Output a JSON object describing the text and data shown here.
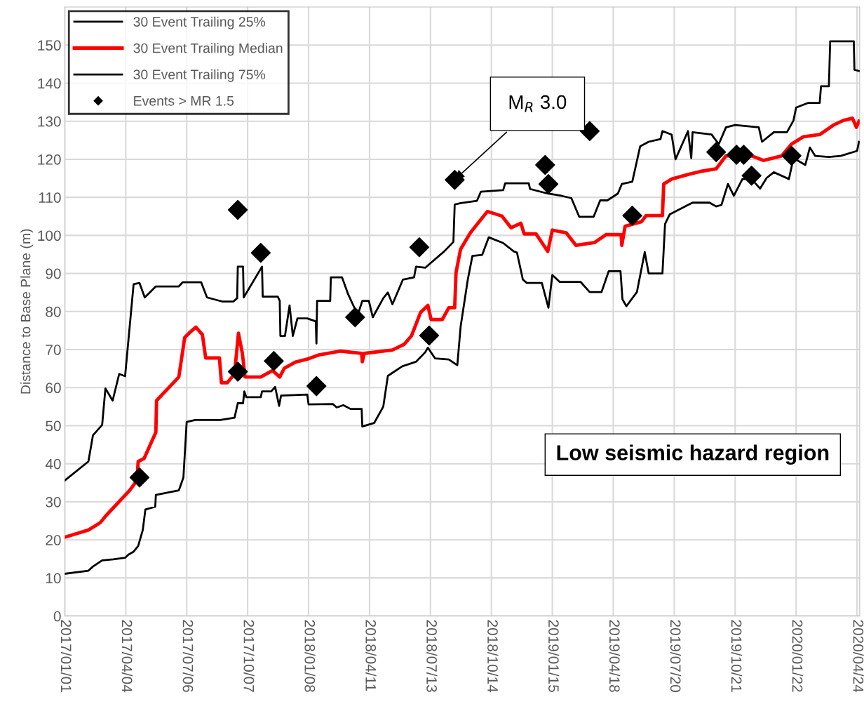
{
  "chart_data": {
    "type": "line",
    "ylabel": "Distance to Base Plane (m)",
    "xlim": [
      "2017-01-01",
      "2020-04-28"
    ],
    "ylim": [
      0,
      160
    ],
    "xticks": [
      {
        "value": "2017-01-01",
        "label": "2017/01/01"
      },
      {
        "value": "2017-04-04",
        "label": "2017/04/04"
      },
      {
        "value": "2017-07-06",
        "label": "2017/07/06"
      },
      {
        "value": "2017-10-07",
        "label": "2017/10/07"
      },
      {
        "value": "2018-01-08",
        "label": "2018/01/08"
      },
      {
        "value": "2018-04-11",
        "label": "2018/04/11"
      },
      {
        "value": "2018-07-13",
        "label": "2018/07/13"
      },
      {
        "value": "2018-10-14",
        "label": "2018/10/14"
      },
      {
        "value": "2019-01-15",
        "label": "2019/01/15"
      },
      {
        "value": "2019-04-18",
        "label": "2019/04/18"
      },
      {
        "value": "2019-07-20",
        "label": "2019/07/20"
      },
      {
        "value": "2019-10-21",
        "label": "2019/10/21"
      },
      {
        "value": "2020-01-22",
        "label": "2020/01/22"
      },
      {
        "value": "2020-04-24",
        "label": "2020/04/24"
      }
    ],
    "yticks": [
      0,
      10,
      20,
      30,
      40,
      50,
      60,
      70,
      80,
      90,
      100,
      110,
      120,
      130,
      140,
      150
    ],
    "grid": true,
    "legend": "top left",
    "annotations": [
      {
        "text": "M$_{R}$ 3.0",
        "x": "2018-08-19",
        "y": 114.6
      },
      "Low seismic hazard region"
    ],
    "series": [
      {
        "name": "30 Event Trailing 25%",
        "color": "#000000",
        "x": [
          "2017-01-01",
          "2017-02-06",
          "2017-02-13",
          "2017-02-27",
          "2017-03-16",
          "2017-04-03",
          "2017-04-08",
          "2017-04-16",
          "2017-04-23",
          "2017-04-30",
          "2017-05-04",
          "2017-05-19",
          "2017-05-20",
          "2017-06-24",
          "2017-07-01",
          "2017-07-06",
          "2017-07-19",
          "2017-08-26",
          "2017-09-17",
          "2017-09-22",
          "2017-09-30",
          "2017-10-02",
          "2017-10-05",
          "2017-10-27",
          "2017-10-29",
          "2017-11-12",
          "2017-11-18",
          "2017-11-24",
          "2017-11-27",
          "2018-01-06",
          "2018-01-08",
          "2018-02-14",
          "2018-02-20",
          "2018-03-02",
          "2018-03-13",
          "2018-03-30",
          "2018-03-31",
          "2018-04-18",
          "2018-05-02",
          "2018-05-09",
          "2018-05-31",
          "2018-06-21",
          "2018-07-05",
          "2018-07-09",
          "2018-07-20",
          "2018-08-10",
          "2018-08-23",
          "2018-08-28",
          "2018-09-08",
          "2018-09-15",
          "2018-09-30",
          "2018-10-10",
          "2018-11-01",
          "2018-11-17",
          "2018-11-22",
          "2018-12-01",
          "2018-12-07",
          "2018-12-30",
          "2019-01-09",
          "2019-01-15",
          "2019-01-26",
          "2019-02-27",
          "2019-03-13",
          "2019-03-31",
          "2019-04-11",
          "2019-04-29",
          "2019-05-02",
          "2019-05-08",
          "2019-05-24",
          "2019-06-05",
          "2019-06-11",
          "2019-07-02",
          "2019-07-06",
          "2019-07-13",
          "2019-08-10",
          "2019-08-17",
          "2019-09-12",
          "2019-09-22",
          "2019-09-30",
          "2019-10-10",
          "2019-10-19",
          "2019-11-01",
          "2019-11-15",
          "2019-11-28",
          "2019-12-08",
          "2019-12-19",
          "2020-01-11",
          "2020-01-18",
          "2020-02-05",
          "2020-02-12",
          "2020-02-20",
          "2020-03-12",
          "2020-03-30",
          "2020-04-24",
          "2020-04-27"
        ],
        "values": [
          11.1,
          11.9,
          13.0,
          14.6,
          14.9,
          15.3,
          16.1,
          16.9,
          18.4,
          22.6,
          28.0,
          28.7,
          31.8,
          33.0,
          36.4,
          51.0,
          51.5,
          51.5,
          52.1,
          55.9,
          55.9,
          59.0,
          57.5,
          57.5,
          59.0,
          59.0,
          60.2,
          55.2,
          57.9,
          58.2,
          55.6,
          55.7,
          54.8,
          55.4,
          54.4,
          54.4,
          49.8,
          50.7,
          55.0,
          63.1,
          65.6,
          66.8,
          69.3,
          70.5,
          67.7,
          67.4,
          65.9,
          76.0,
          88.4,
          94.6,
          94.9,
          99.5,
          98.0,
          95.8,
          95.5,
          88.4,
          87.5,
          87.5,
          81.0,
          89.6,
          87.8,
          87.8,
          85.1,
          85.1,
          90.6,
          90.6,
          83.2,
          81.4,
          85.1,
          95.6,
          90.0,
          90.0,
          103.0,
          105.5,
          108.0,
          108.6,
          108.6,
          107.6,
          108.0,
          113.5,
          110.4,
          114.8,
          114.8,
          112.3,
          115.1,
          116.6,
          114.8,
          120.3,
          118.5,
          123.1,
          120.9,
          120.6,
          120.9,
          122.2,
          124.6
        ]
      },
      {
        "name": "30 Event Trailing Median",
        "color": "#ff0000",
        "x": [
          "2017-01-01",
          "2017-02-06",
          "2017-02-24",
          "2017-03-05",
          "2017-04-10",
          "2017-04-21",
          "2017-04-23",
          "2017-05-02",
          "2017-05-20",
          "2017-05-21",
          "2017-06-24",
          "2017-07-03",
          "2017-07-12",
          "2017-07-20",
          "2017-07-30",
          "2017-08-04",
          "2017-08-25",
          "2017-08-28",
          "2017-09-06",
          "2017-09-17",
          "2017-09-23",
          "2017-09-29",
          "2017-10-03",
          "2017-10-27",
          "2017-11-14",
          "2017-11-25",
          "2017-12-02",
          "2017-12-19",
          "2018-01-08",
          "2018-01-24",
          "2018-02-26",
          "2018-03-30",
          "2018-03-31",
          "2018-04-03",
          "2018-05-16",
          "2018-06-03",
          "2018-06-14",
          "2018-06-28",
          "2018-07-09",
          "2018-07-14",
          "2018-07-31",
          "2018-08-10",
          "2018-08-19",
          "2018-08-21",
          "2018-08-28",
          "2018-09-12",
          "2018-09-29",
          "2018-10-08",
          "2018-10-30",
          "2018-11-13",
          "2018-11-28",
          "2018-12-03",
          "2018-12-21",
          "2019-01-08",
          "2019-01-15",
          "2019-02-05",
          "2019-02-20",
          "2019-03-20",
          "2019-04-07",
          "2019-04-30",
          "2019-05-01",
          "2019-05-06",
          "2019-05-31",
          "2019-06-07",
          "2019-07-02",
          "2019-07-04",
          "2019-07-16",
          "2019-08-10",
          "2019-09-01",
          "2019-09-22",
          "2019-10-07",
          "2019-11-15",
          "2019-12-03",
          "2019-12-31",
          "2020-01-15",
          "2020-02-02",
          "2020-02-27",
          "2020-03-19",
          "2020-04-03",
          "2020-04-17",
          "2020-04-23",
          "2020-04-27"
        ],
        "values": [
          20.7,
          22.6,
          24.5,
          26.4,
          33.0,
          35.6,
          40.6,
          41.4,
          48.3,
          56.6,
          62.8,
          73.2,
          74.7,
          75.9,
          73.9,
          67.8,
          67.8,
          61.3,
          61.3,
          63.6,
          74.3,
          69.0,
          62.8,
          62.8,
          64.5,
          62.8,
          65.1,
          66.7,
          67.6,
          68.6,
          69.6,
          69.0,
          66.8,
          69.0,
          69.9,
          71.4,
          73.6,
          79.8,
          81.6,
          77.9,
          77.9,
          81.0,
          81.0,
          90.2,
          96.4,
          100.7,
          104.4,
          106.3,
          105.1,
          102.0,
          103.2,
          100.4,
          100.4,
          95.8,
          101.4,
          100.7,
          97.4,
          98.1,
          100.2,
          100.2,
          97.4,
          102.4,
          103.6,
          105.2,
          105.2,
          113.5,
          114.8,
          116.0,
          116.9,
          117.5,
          120.9,
          120.9,
          119.7,
          120.9,
          124.0,
          125.9,
          126.5,
          129.0,
          130.2,
          130.8,
          128.4,
          130.0
        ]
      },
      {
        "name": "30 Event Trailing 75%",
        "color": "#000000",
        "x": [
          "2017-01-01",
          "2017-02-06",
          "2017-02-13",
          "2017-02-27",
          "2017-03-04",
          "2017-03-15",
          "2017-03-25",
          "2017-04-03",
          "2017-04-16",
          "2017-04-25",
          "2017-05-03",
          "2017-05-20",
          "2017-06-24",
          "2017-06-30",
          "2017-07-28",
          "2017-08-06",
          "2017-08-30",
          "2017-09-15",
          "2017-09-21",
          "2017-09-22",
          "2017-09-30",
          "2017-10-01",
          "2017-10-29",
          "2017-10-30",
          "2017-11-22",
          "2017-11-25",
          "2017-11-26",
          "2017-12-03",
          "2017-12-10",
          "2017-12-15",
          "2017-12-22",
          "2018-01-06",
          "2018-01-19",
          "2018-01-20",
          "2018-01-21",
          "2018-02-10",
          "2018-02-11",
          "2018-02-28",
          "2018-03-09",
          "2018-03-24",
          "2018-03-31",
          "2018-04-10",
          "2018-04-16",
          "2018-05-02",
          "2018-05-09",
          "2018-05-16",
          "2018-06-01",
          "2018-06-18",
          "2018-06-21",
          "2018-07-05",
          "2018-07-13",
          "2018-08-03",
          "2018-08-17",
          "2018-08-19",
          "2018-08-28",
          "2018-09-22",
          "2018-09-28",
          "2018-11-01",
          "2018-11-04",
          "2018-12-10",
          "2018-12-12",
          "2019-01-08",
          "2019-01-29",
          "2019-02-13",
          "2019-02-25",
          "2019-03-19",
          "2019-03-29",
          "2019-04-09",
          "2019-04-25",
          "2019-05-01",
          "2019-05-17",
          "2019-05-29",
          "2019-06-11",
          "2019-06-29",
          "2019-07-02",
          "2019-07-16",
          "2019-07-22",
          "2019-08-10",
          "2019-08-15",
          "2019-08-17",
          "2019-09-15",
          "2019-09-26",
          "2019-10-07",
          "2019-10-21",
          "2019-11-26",
          "2019-12-01",
          "2019-12-19",
          "2020-01-08",
          "2020-01-18",
          "2020-01-22",
          "2020-02-09",
          "2020-02-27",
          "2020-02-29",
          "2020-03-12",
          "2020-03-14",
          "2020-04-19",
          "2020-04-20",
          "2020-04-27"
        ],
        "values": [
          35.6,
          40.6,
          47.5,
          50.2,
          59.8,
          56.6,
          63.6,
          63.0,
          87.2,
          87.5,
          83.7,
          86.6,
          86.6,
          87.7,
          87.7,
          83.7,
          82.6,
          82.6,
          83.5,
          91.8,
          91.8,
          83.7,
          91.8,
          83.9,
          83.9,
          82.8,
          73.6,
          73.6,
          81.6,
          73.6,
          78.2,
          78.2,
          77.4,
          71.6,
          82.8,
          82.8,
          89.0,
          89.0,
          84.7,
          79.1,
          82.8,
          82.8,
          78.5,
          83.5,
          85.0,
          81.9,
          88.4,
          89.0,
          91.8,
          91.5,
          92.7,
          95.8,
          98.3,
          108.1,
          108.5,
          109.1,
          111.5,
          111.9,
          113.7,
          113.7,
          112.2,
          111.0,
          110.4,
          109.8,
          104.9,
          104.9,
          109.2,
          109.2,
          111.0,
          113.5,
          114.1,
          123.4,
          124.6,
          125.3,
          127.4,
          126.5,
          120.0,
          127.4,
          120.3,
          127.1,
          126.5,
          124.0,
          128.4,
          129.0,
          128.4,
          124.6,
          127.1,
          127.1,
          130.2,
          133.6,
          134.8,
          134.8,
          139.2,
          139.2,
          151.0,
          151.0,
          143.5,
          143.2
        ]
      },
      {
        "name": "Events > MR 1.5",
        "color": "#000000",
        "type": "scatter",
        "marker": "diamond",
        "x": [
          "2017-04-25",
          "2017-09-22",
          "2017-09-22",
          "2017-10-27",
          "2017-11-16",
          "2018-01-20",
          "2018-03-20",
          "2018-06-26",
          "2018-07-11",
          "2018-08-19",
          "2019-01-04",
          "2019-01-09",
          "2019-03-13",
          "2019-05-17",
          "2019-09-22",
          "2019-10-23",
          "2019-11-03",
          "2019-11-15",
          "2020-01-15"
        ],
        "values": [
          36.4,
          106.7,
          64.2,
          95.4,
          67.0,
          60.4,
          78.5,
          96.9,
          73.7,
          114.6,
          118.5,
          113.5,
          127.4,
          105.2,
          121.9,
          121.2,
          121.2,
          115.7,
          120.9
        ]
      }
    ]
  }
}
